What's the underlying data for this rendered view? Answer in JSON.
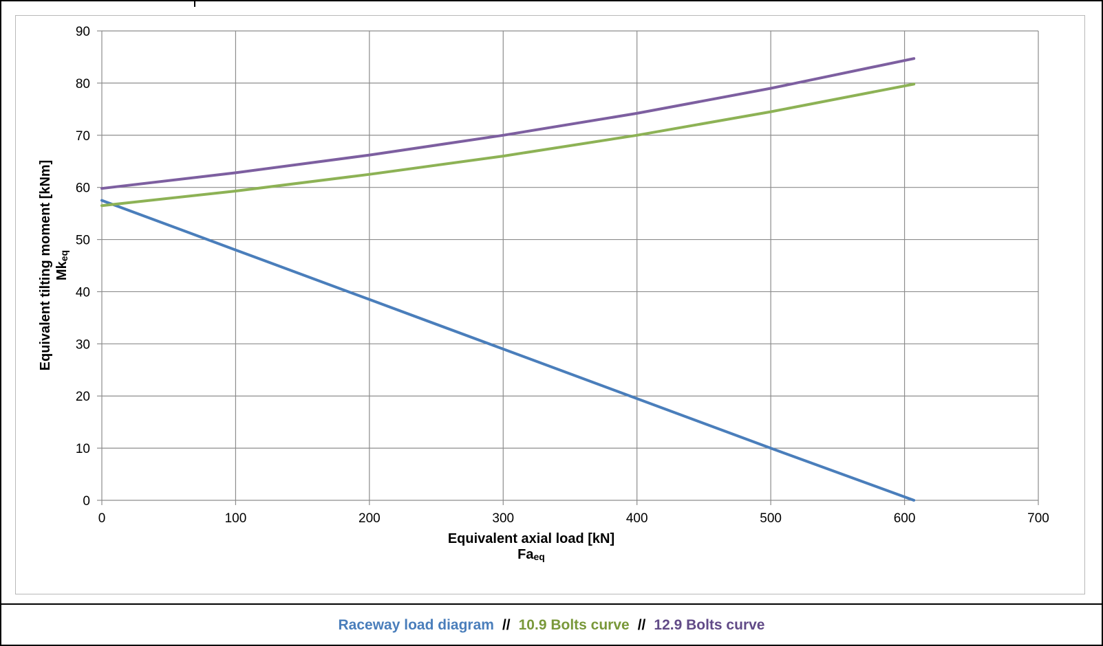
{
  "chart_data": {
    "type": "line",
    "xlabel": "Equivalent axial load [kN]",
    "xlabel_sub": "Fa",
    "xlabel_sub_suffix": "eq",
    "ylabel": "Equivalent tilting moment [kNm]",
    "ylabel_sub": "Mk",
    "ylabel_sub_suffix": "eq",
    "xlim": [
      0,
      700
    ],
    "ylim": [
      0,
      90
    ],
    "xticks": [
      0,
      100,
      200,
      300,
      400,
      500,
      600,
      700
    ],
    "yticks": [
      0,
      10,
      20,
      30,
      40,
      50,
      60,
      70,
      80,
      90
    ],
    "grid": true,
    "series": [
      {
        "name": "Raceway load diagram",
        "color": "#4a7ebb",
        "x": [
          0,
          100,
          200,
          300,
          400,
          500,
          607
        ],
        "y": [
          57.5,
          48,
          38.5,
          29,
          19.5,
          10,
          0
        ]
      },
      {
        "name": "10.9 Bolts curve",
        "color": "#8db255",
        "x": [
          0,
          100,
          200,
          300,
          400,
          500,
          607
        ],
        "y": [
          56.5,
          59.3,
          62.5,
          66,
          70,
          74.5,
          79.8
        ]
      },
      {
        "name": "12.9 Bolts curve",
        "color": "#7d5fa0",
        "x": [
          0,
          100,
          200,
          300,
          400,
          500,
          607
        ],
        "y": [
          59.8,
          62.8,
          66.2,
          70,
          74.2,
          79,
          84.7
        ]
      }
    ]
  },
  "legend": {
    "separator": "//",
    "items": [
      {
        "label": "Raceway load diagram",
        "color": "#4a7ebb"
      },
      {
        "label": "10.9 Bolts curve",
        "color": "#79983a"
      },
      {
        "label": "12.9 Bolts curve",
        "color": "#614a87"
      }
    ]
  }
}
